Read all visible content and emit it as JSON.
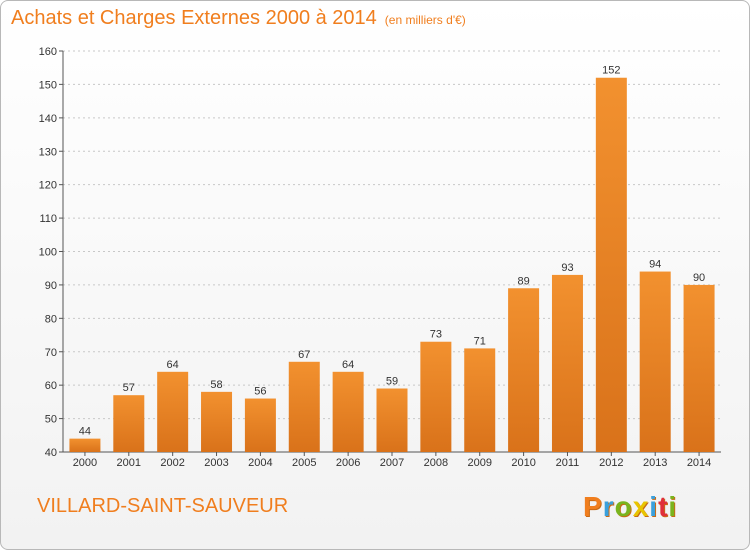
{
  "header": {
    "title": "Achats et Charges Externes 2000 à 2014",
    "subtitle": "(en milliers d'€)"
  },
  "footer": {
    "commune": "VILLARD-SAINT-SAUVEUR",
    "logo_letters": [
      "P",
      "r",
      "o",
      "x",
      "i",
      "t",
      "i"
    ],
    "logo_colors": [
      "#f07e1e",
      "#3aa0dc",
      "#7ab41e",
      "#e8c400",
      "#3aa0dc",
      "#e0303a",
      "#7ab41e"
    ]
  },
  "colors": {
    "bar": "#f2912f",
    "bar_dark": "#d9721a",
    "axis_text": "#333333",
    "grid": "#c8c8c8"
  },
  "chart_data": {
    "type": "bar",
    "categories": [
      "2000",
      "2001",
      "2002",
      "2003",
      "2004",
      "2005",
      "2006",
      "2007",
      "2008",
      "2009",
      "2010",
      "2011",
      "2012",
      "2013",
      "2014"
    ],
    "values": [
      44,
      57,
      64,
      58,
      56,
      67,
      64,
      59,
      73,
      71,
      89,
      93,
      152,
      94,
      90
    ],
    "title": "Achats et Charges Externes 2000 à 2014",
    "ylim": [
      40,
      160
    ],
    "yticks": [
      40,
      50,
      60,
      70,
      80,
      90,
      100,
      110,
      120,
      130,
      140,
      150,
      160
    ],
    "grid": true
  }
}
